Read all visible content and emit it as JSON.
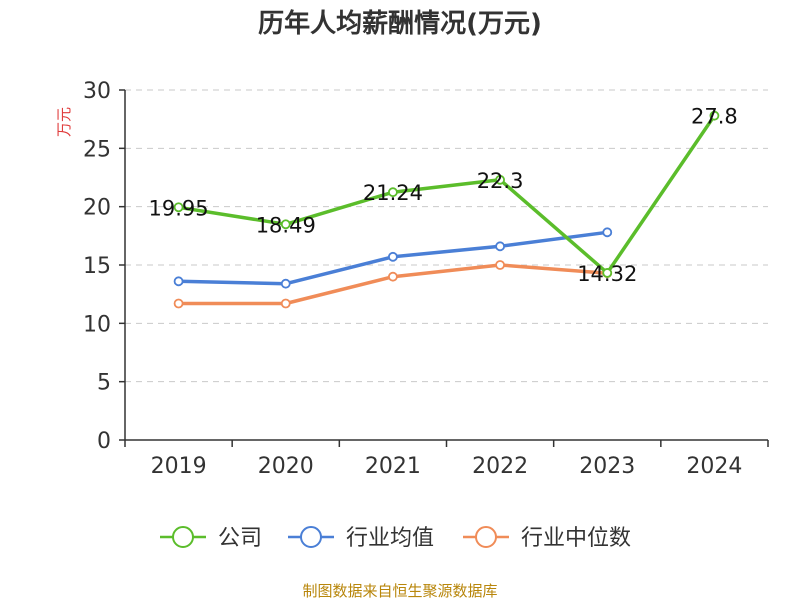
{
  "chart_data": {
    "type": "line",
    "title": "历年人均薪酬情况(万元)",
    "ylabel": "万元",
    "xlabel": "",
    "categories": [
      "2019",
      "2020",
      "2021",
      "2022",
      "2023",
      "2024"
    ],
    "ylim": [
      0,
      30
    ],
    "yticks": [
      0,
      5,
      10,
      15,
      20,
      25,
      30
    ],
    "grid": true,
    "legend_position": "bottom",
    "series": [
      {
        "name": "公司",
        "color": "#5bbd2b",
        "values": [
          19.95,
          18.49,
          21.24,
          22.3,
          14.32,
          27.8
        ],
        "labels": [
          "19.95",
          "18.49",
          "21.24",
          "22.3",
          "14.32",
          "27.8"
        ],
        "show_labels": true
      },
      {
        "name": "行业均值",
        "color": "#4a7fd6",
        "values": [
          13.6,
          13.4,
          15.7,
          16.6,
          17.8,
          null
        ],
        "show_labels": false
      },
      {
        "name": "行业中位数",
        "color": "#f08c58",
        "values": [
          11.7,
          11.7,
          14.0,
          15.0,
          14.3,
          null
        ],
        "show_labels": false
      }
    ]
  },
  "source": "制图数据来自恒生聚源数据库"
}
